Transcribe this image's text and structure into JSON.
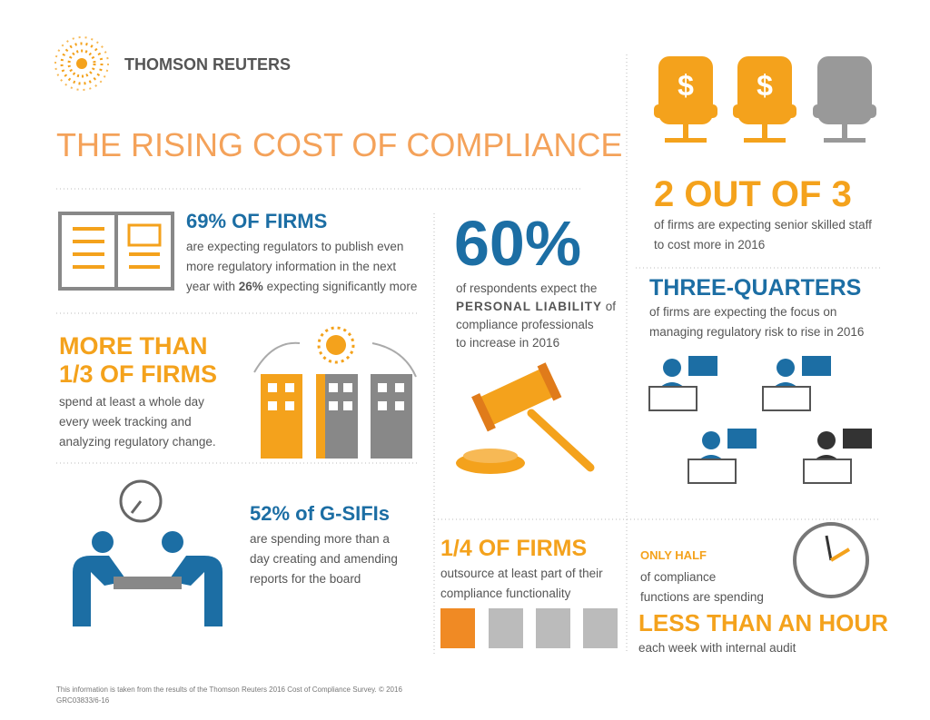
{
  "header": {
    "brand": "THOMSON REUTERS",
    "title": "THE RISING COST OF COMPLIANCE"
  },
  "firms69": {
    "headline": "69% OF FIRMS",
    "lines": [
      "are expecting regulators to publish even",
      "more regulatory information in the next"
    ],
    "last": [
      "year with ",
      "26%",
      " expecting significantly more"
    ]
  },
  "third": {
    "headline": [
      "MORE THAN",
      "1/3 OF FIRMS"
    ],
    "lines": [
      "spend at least a whole day",
      "every week tracking and",
      "analyzing regulatory change."
    ]
  },
  "gsifi": {
    "headline": "52% of G-SIFIs",
    "lines": [
      "are spending more than a",
      "day creating and amending",
      "reports for the board"
    ]
  },
  "sixty": {
    "headline": "60%",
    "first": "of respondents expect the",
    "second": [
      "PERSONAL LIABILITY",
      " of"
    ],
    "lines": [
      "compliance professionals",
      "to increase in 2016"
    ]
  },
  "twoOfThree": {
    "headline": "2 OUT OF 3",
    "lines": [
      "of firms are expecting senior skilled staff",
      "to cost more in 2016"
    ]
  },
  "threeQuarters": {
    "headline": "THREE-QUARTERS",
    "lines": [
      "of firms are expecting the focus on",
      "managing regulatory risk to rise in 2016"
    ]
  },
  "quarter": {
    "headline": "1/4 OF FIRMS",
    "lines": [
      "outsource at least part of their",
      "compliance functionality"
    ]
  },
  "half": {
    "lead": "ONLY HALF",
    "lines": [
      "of compliance",
      "functions are spending"
    ],
    "headline": "LESS THAN AN HOUR",
    "tail": "each week with internal audit"
  },
  "footer": [
    "This information is taken from the results of the Thomson Reuters 2016 Cost of Compliance Survey. © 2016",
    "GRC03833/6-16"
  ]
}
